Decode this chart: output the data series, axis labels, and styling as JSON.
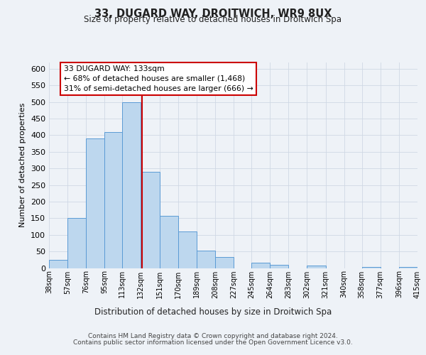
{
  "title": "33, DUGARD WAY, DROITWICH, WR9 8UX",
  "subtitle": "Size of property relative to detached houses in Droitwich Spa",
  "xlabel": "Distribution of detached houses by size in Droitwich Spa",
  "ylabel": "Number of detached properties",
  "bin_labels": [
    "38sqm",
    "57sqm",
    "76sqm",
    "95sqm",
    "113sqm",
    "132sqm",
    "151sqm",
    "170sqm",
    "189sqm",
    "208sqm",
    "227sqm",
    "245sqm",
    "264sqm",
    "283sqm",
    "302sqm",
    "321sqm",
    "340sqm",
    "358sqm",
    "377sqm",
    "396sqm",
    "415sqm"
  ],
  "bin_edges": [
    38,
    57,
    76,
    95,
    113,
    132,
    151,
    170,
    189,
    208,
    227,
    245,
    264,
    283,
    302,
    321,
    340,
    358,
    377,
    396,
    415
  ],
  "bar_heights": [
    25,
    150,
    390,
    410,
    500,
    290,
    157,
    110,
    53,
    33,
    0,
    17,
    10,
    0,
    8,
    0,
    0,
    4,
    0,
    4
  ],
  "bar_color": "#bdd7ee",
  "bar_edge_color": "#5b9bd5",
  "property_value": 133,
  "vline_color": "#cc0000",
  "annotation_line1": "33 DUGARD WAY: 133sqm",
  "annotation_line2": "← 68% of detached houses are smaller (1,468)",
  "annotation_line3": "31% of semi-detached houses are larger (666) →",
  "annotation_box_color": "#ffffff",
  "annotation_box_edge": "#cc0000",
  "ylim": [
    0,
    620
  ],
  "yticks": [
    0,
    50,
    100,
    150,
    200,
    250,
    300,
    350,
    400,
    450,
    500,
    550,
    600
  ],
  "footer_line1": "Contains HM Land Registry data © Crown copyright and database right 2024.",
  "footer_line2": "Contains public sector information licensed under the Open Government Licence v3.0.",
  "bg_color": "#eef2f7",
  "grid_color": "#d0d8e4"
}
